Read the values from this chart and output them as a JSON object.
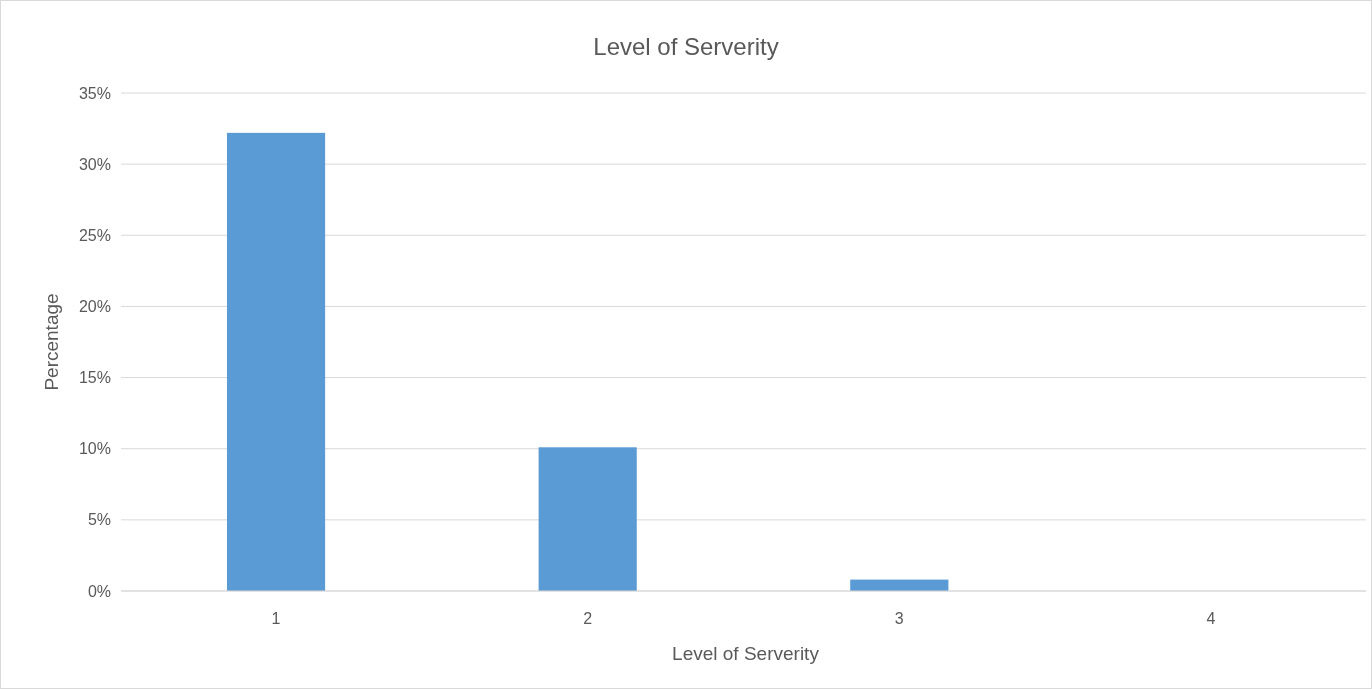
{
  "chart_data": {
    "type": "bar",
    "title": "Level of Serverity",
    "xlabel": "Level of Serverity",
    "ylabel": "Percentage",
    "categories": [
      "1",
      "2",
      "3",
      "4"
    ],
    "values": [
      32.2,
      10.1,
      0.8,
      0
    ],
    "color": "#5b9bd5",
    "ylim": [
      0,
      35
    ],
    "yticks": [
      {
        "value": 0,
        "label": "0%"
      },
      {
        "value": 5,
        "label": "5%"
      },
      {
        "value": 10,
        "label": "10%"
      },
      {
        "value": 15,
        "label": "15%"
      },
      {
        "value": 20,
        "label": "20%"
      },
      {
        "value": 25,
        "label": "25%"
      },
      {
        "value": 30,
        "label": "30%"
      },
      {
        "value": 35,
        "label": "35%"
      }
    ],
    "grid": "y"
  }
}
